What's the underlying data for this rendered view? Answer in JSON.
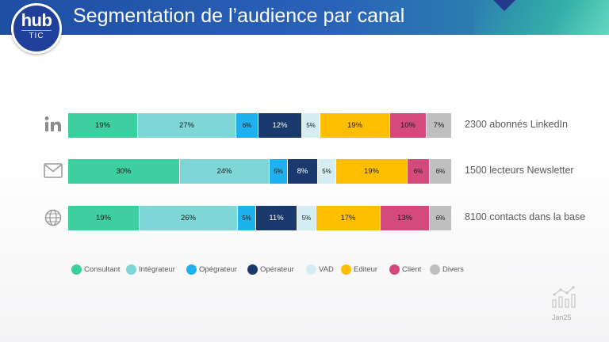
{
  "header": {
    "title": "Segmentation de l’audience par canal"
  },
  "logo": {
    "top": "hub",
    "bottom": "TIC"
  },
  "colors": {
    "Consultant": "#3dcf9f",
    "Intégrateur": "#7fd6d6",
    "Opégrateur": "#1eb1ee",
    "Opérateur": "#1a3a6e",
    "VAD": "#d4edf2",
    "Editeur": "#ffbf00",
    "Client": "#d54a7d",
    "Divers": "#bfbfbf"
  },
  "chart_data": {
    "type": "bar",
    "orientation": "horizontal",
    "stacked": true,
    "normalized_percent": true,
    "legend_position": "bottom",
    "grid": false,
    "categories": [
      "2300 abonnés LinkedIn",
      "1500 lecteurs Newsletter",
      "8100 contacts dans la base"
    ],
    "series": [
      {
        "name": "Consultant",
        "values": [
          19,
          30,
          19
        ],
        "labels": [
          "19%",
          "30%",
          "19%"
        ]
      },
      {
        "name": "Intégrateur",
        "values": [
          27,
          24,
          26
        ],
        "labels": [
          "27%",
          "24%",
          "26%"
        ]
      },
      {
        "name": "Opégrateur",
        "values": [
          6,
          5,
          5
        ],
        "labels": [
          "6%",
          "5%",
          "5%"
        ]
      },
      {
        "name": "Opérateur",
        "values": [
          12,
          8,
          11
        ],
        "labels": [
          "12%",
          "8%",
          "11%"
        ]
      },
      {
        "name": "VAD",
        "values": [
          5,
          5,
          5
        ],
        "labels": [
          "5%",
          "5%",
          "5%"
        ]
      },
      {
        "name": "Editeur",
        "values": [
          19,
          19,
          17
        ],
        "labels": [
          "19%",
          "19%",
          "17%"
        ]
      },
      {
        "name": "Client",
        "values": [
          10,
          6,
          13
        ],
        "labels": [
          "10%",
          "6%",
          "13%"
        ]
      },
      {
        "name": "Divers",
        "values": [
          7,
          6,
          6
        ],
        "labels": [
          "7%",
          "6%",
          "6%"
        ]
      }
    ],
    "row_icons": [
      "linkedin-icon",
      "envelope-icon",
      "globe-icon"
    ]
  },
  "footer": {
    "date": "Jan25",
    "icon": "chart-icon"
  }
}
